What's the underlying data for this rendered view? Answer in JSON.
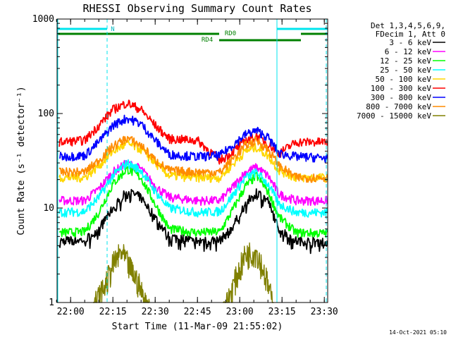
{
  "chart_data": {
    "type": "line",
    "title": "RHESSI Observing Summary Count Rates",
    "xlabel": "Start Time (11-Mar-09 21:55:02)",
    "ylabel": "Count Rate (s⁻¹ detector⁻¹)",
    "y_scale": "log",
    "ylim": [
      1,
      1000
    ],
    "xlim_minutes": [
      21.92,
      23.52
    ],
    "x_ticks": [
      "22:00",
      "22:15",
      "22:30",
      "22:45",
      "23:00",
      "23:15",
      "23:30"
    ],
    "y_ticks": [
      "1",
      "10",
      "100",
      "1000"
    ],
    "legend_header": [
      "Det 1,3,4,5,6,9,",
      "FDecim 1, Att 0"
    ],
    "legend_position": "right",
    "timestamp": "14-Oct-2021 05:10",
    "annotations": {
      "saa_label": "N",
      "rd0_label": "RD0",
      "rd4_label": "RD4"
    },
    "flags": {
      "saa_color": "#00e5ee",
      "rd_color": "#008000",
      "vertical_markers": [
        "21:55",
        "22:14",
        "23:13",
        "23:32"
      ]
    },
    "series": [
      {
        "name": "3 - 6 keV",
        "color": "#000000",
        "times": [
          "21:56",
          "22:05",
          "22:10",
          "22:15",
          "22:20",
          "22:25",
          "22:30",
          "22:35",
          "22:45",
          "22:53",
          "22:57",
          "23:02",
          "23:06",
          "23:10",
          "23:14",
          "23:20",
          "23:31"
        ],
        "values": [
          4.5,
          4.6,
          6,
          10,
          15,
          13,
          8,
          5,
          4.5,
          4.6,
          6,
          11,
          15,
          12,
          6,
          4.5,
          4.4
        ]
      },
      {
        "name": "6 - 12 keV",
        "color": "#ff00ff",
        "times": [
          "21:56",
          "22:05",
          "22:10",
          "22:15",
          "22:20",
          "22:25",
          "22:30",
          "22:35",
          "22:45",
          "22:53",
          "22:57",
          "23:02",
          "23:06",
          "23:10",
          "23:14",
          "23:20",
          "23:31"
        ],
        "values": [
          12,
          12,
          16,
          24,
          30,
          26,
          17,
          13,
          12,
          12,
          16,
          24,
          27,
          22,
          14,
          12,
          12
        ]
      },
      {
        "name": "12 - 25 keV",
        "color": "#00ff00",
        "times": [
          "21:56",
          "22:05",
          "22:10",
          "22:15",
          "22:20",
          "22:25",
          "22:30",
          "22:35",
          "22:45",
          "22:53",
          "22:57",
          "23:02",
          "23:06",
          "23:10",
          "23:14",
          "23:20",
          "23:31"
        ],
        "values": [
          5.5,
          5.6,
          9,
          18,
          26,
          21,
          11,
          6,
          5.5,
          5.6,
          9,
          17,
          22,
          15,
          8,
          5.5,
          5.4
        ]
      },
      {
        "name": "25 - 50 keV",
        "color": "#00ffff",
        "times": [
          "21:56",
          "22:05",
          "22:10",
          "22:15",
          "22:20",
          "22:25",
          "22:30",
          "22:35",
          "22:45",
          "22:53",
          "22:57",
          "23:02",
          "23:06",
          "23:10",
          "23:14",
          "23:20",
          "23:31"
        ],
        "values": [
          9,
          9.2,
          13,
          22,
          30,
          25,
          15,
          10,
          9,
          9.2,
          13,
          21,
          24,
          18,
          11,
          9,
          9
        ]
      },
      {
        "name": "50 - 100 keV",
        "color": "#ffd700",
        "times": [
          "21:56",
          "22:05",
          "22:10",
          "22:15",
          "22:20",
          "22:25",
          "22:30",
          "22:35",
          "22:45",
          "22:53",
          "22:57",
          "23:02",
          "23:06",
          "23:10",
          "23:14",
          "23:20",
          "23:31"
        ],
        "values": [
          21,
          21,
          28,
          40,
          48,
          42,
          30,
          22,
          21,
          21,
          28,
          40,
          44,
          36,
          25,
          21,
          21
        ]
      },
      {
        "name": "100 - 300 keV",
        "color": "#ff0000",
        "times": [
          "21:56",
          "22:05",
          "22:10",
          "22:15",
          "22:20",
          "22:25",
          "22:30",
          "22:35",
          "22:45",
          "22:53",
          "22:57",
          "23:02",
          "23:06",
          "23:10",
          "23:14",
          "23:20",
          "23:31"
        ],
        "values": [
          50,
          52,
          75,
          110,
          130,
          110,
          75,
          54,
          52,
          32,
          38,
          52,
          58,
          48,
          38,
          50,
          50
        ]
      },
      {
        "name": "300 - 800 keV",
        "color": "#0000ff",
        "times": [
          "21:56",
          "22:05",
          "22:10",
          "22:15",
          "22:20",
          "22:25",
          "22:30",
          "22:35",
          "22:45",
          "22:53",
          "22:57",
          "23:02",
          "23:06",
          "23:10",
          "23:14",
          "23:20",
          "23:31"
        ],
        "values": [
          35,
          36,
          50,
          75,
          90,
          78,
          52,
          37,
          35,
          36,
          45,
          60,
          66,
          56,
          38,
          35,
          34
        ]
      },
      {
        "name": "800 - 7000 keV",
        "color": "#ff8c00",
        "times": [
          "21:56",
          "22:05",
          "22:10",
          "22:15",
          "22:20",
          "22:25",
          "22:30",
          "22:35",
          "22:45",
          "22:53",
          "22:57",
          "23:02",
          "23:06",
          "23:10",
          "23:14",
          "23:20",
          "23:31"
        ],
        "values": [
          24,
          24,
          32,
          45,
          55,
          46,
          32,
          25,
          24,
          24,
          32,
          46,
          52,
          42,
          28,
          21,
          21
        ]
      },
      {
        "name": "7000 - 15000 keV",
        "color": "#808000",
        "times": [
          "22:08",
          "22:12",
          "22:15",
          "22:18",
          "22:21",
          "22:24",
          "22:27",
          "22:55",
          "22:58",
          "23:02",
          "23:06",
          "23:09",
          "23:12"
        ],
        "values": [
          1,
          1.6,
          2.8,
          3.8,
          2.6,
          1.8,
          1,
          1,
          1.8,
          3.6,
          3.9,
          2.2,
          1
        ]
      }
    ]
  }
}
